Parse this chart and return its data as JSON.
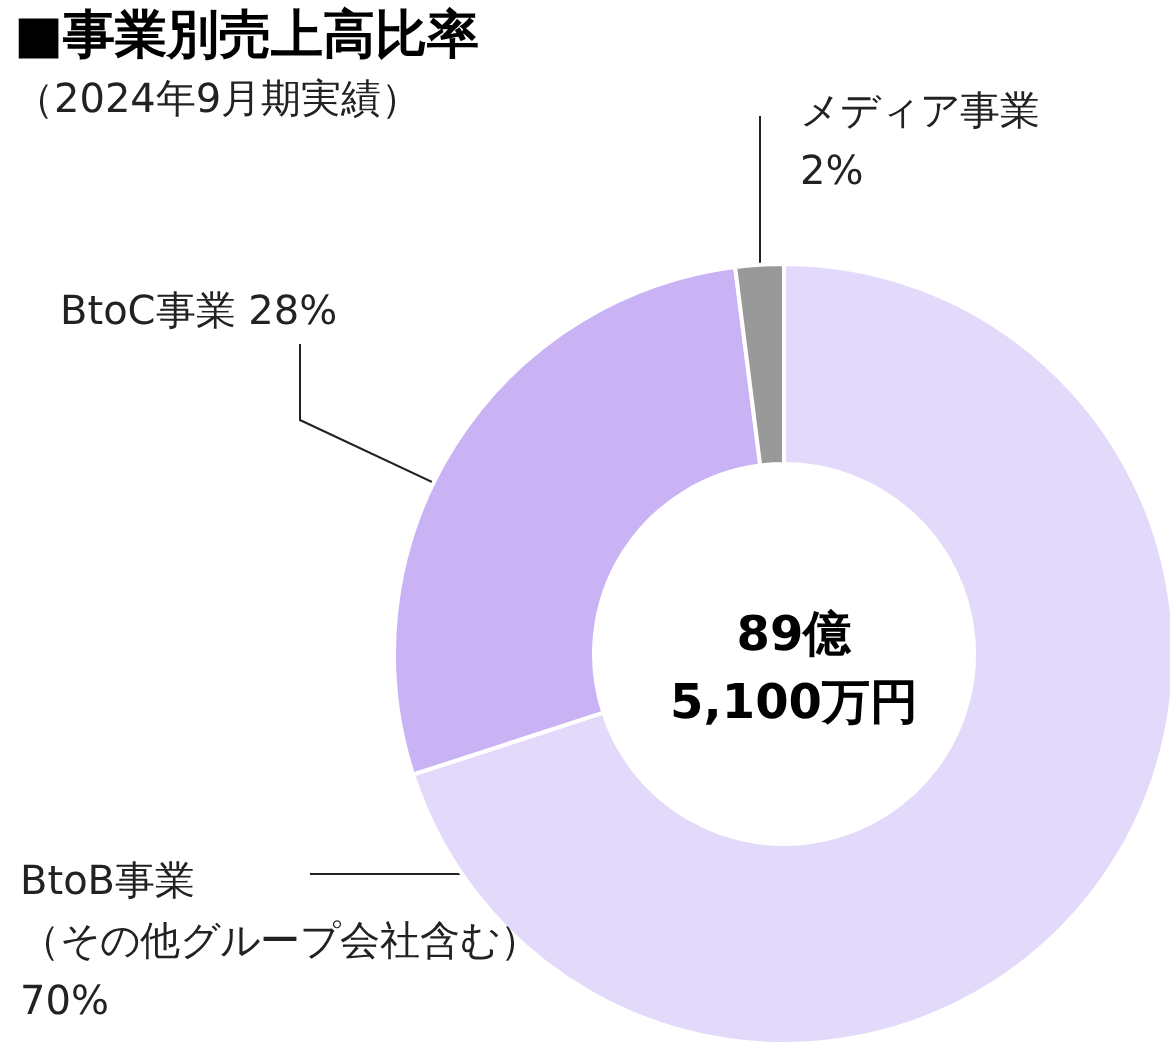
{
  "chart_data": {
    "type": "donut",
    "title": "■事業別売上高比率",
    "subtitle": "（2024年9月期実績）",
    "categories": [
      "BtoB事業（その他グループ会社含む）",
      "BtoC事業",
      "メディア事業"
    ],
    "values": [
      70,
      28,
      2
    ],
    "colors": [
      "#e3dafb",
      "#c9b3f5",
      "#999999"
    ],
    "value_labels": [
      "70%",
      "28%",
      "2%"
    ],
    "annotations": [
      "89億\n5,100万円"
    ],
    "legend": false
  }
}
